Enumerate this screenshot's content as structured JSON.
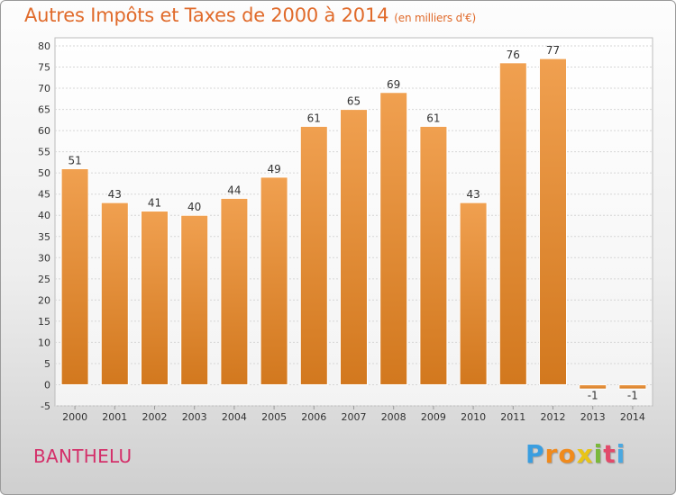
{
  "chart_data": {
    "type": "bar",
    "title": "Autres Impôts et Taxes de 2000 à 2014",
    "subtitle": "(en milliers d'€)",
    "categories": [
      "2000",
      "2001",
      "2002",
      "2003",
      "2004",
      "2005",
      "2006",
      "2007",
      "2008",
      "2009",
      "2010",
      "2011",
      "2012",
      "2013",
      "2014"
    ],
    "values": [
      51,
      43,
      41,
      40,
      44,
      49,
      61,
      65,
      69,
      61,
      43,
      76,
      77,
      -1,
      -1
    ],
    "ylim": [
      -5,
      80
    ],
    "ytick_step": 5,
    "grid": true,
    "bar_color": "#f0a050",
    "bar_color_dark": "#d2781e"
  },
  "place_label": "BANTHELU",
  "brand": {
    "letters": [
      "P",
      "r",
      "o",
      "x",
      "i",
      "t",
      "i"
    ],
    "colors": [
      "#3a9ee0",
      "#f08a1c",
      "#f08a1c",
      "#e8c418",
      "#7ab83a",
      "#e24a6a",
      "#4aa8e0"
    ]
  }
}
